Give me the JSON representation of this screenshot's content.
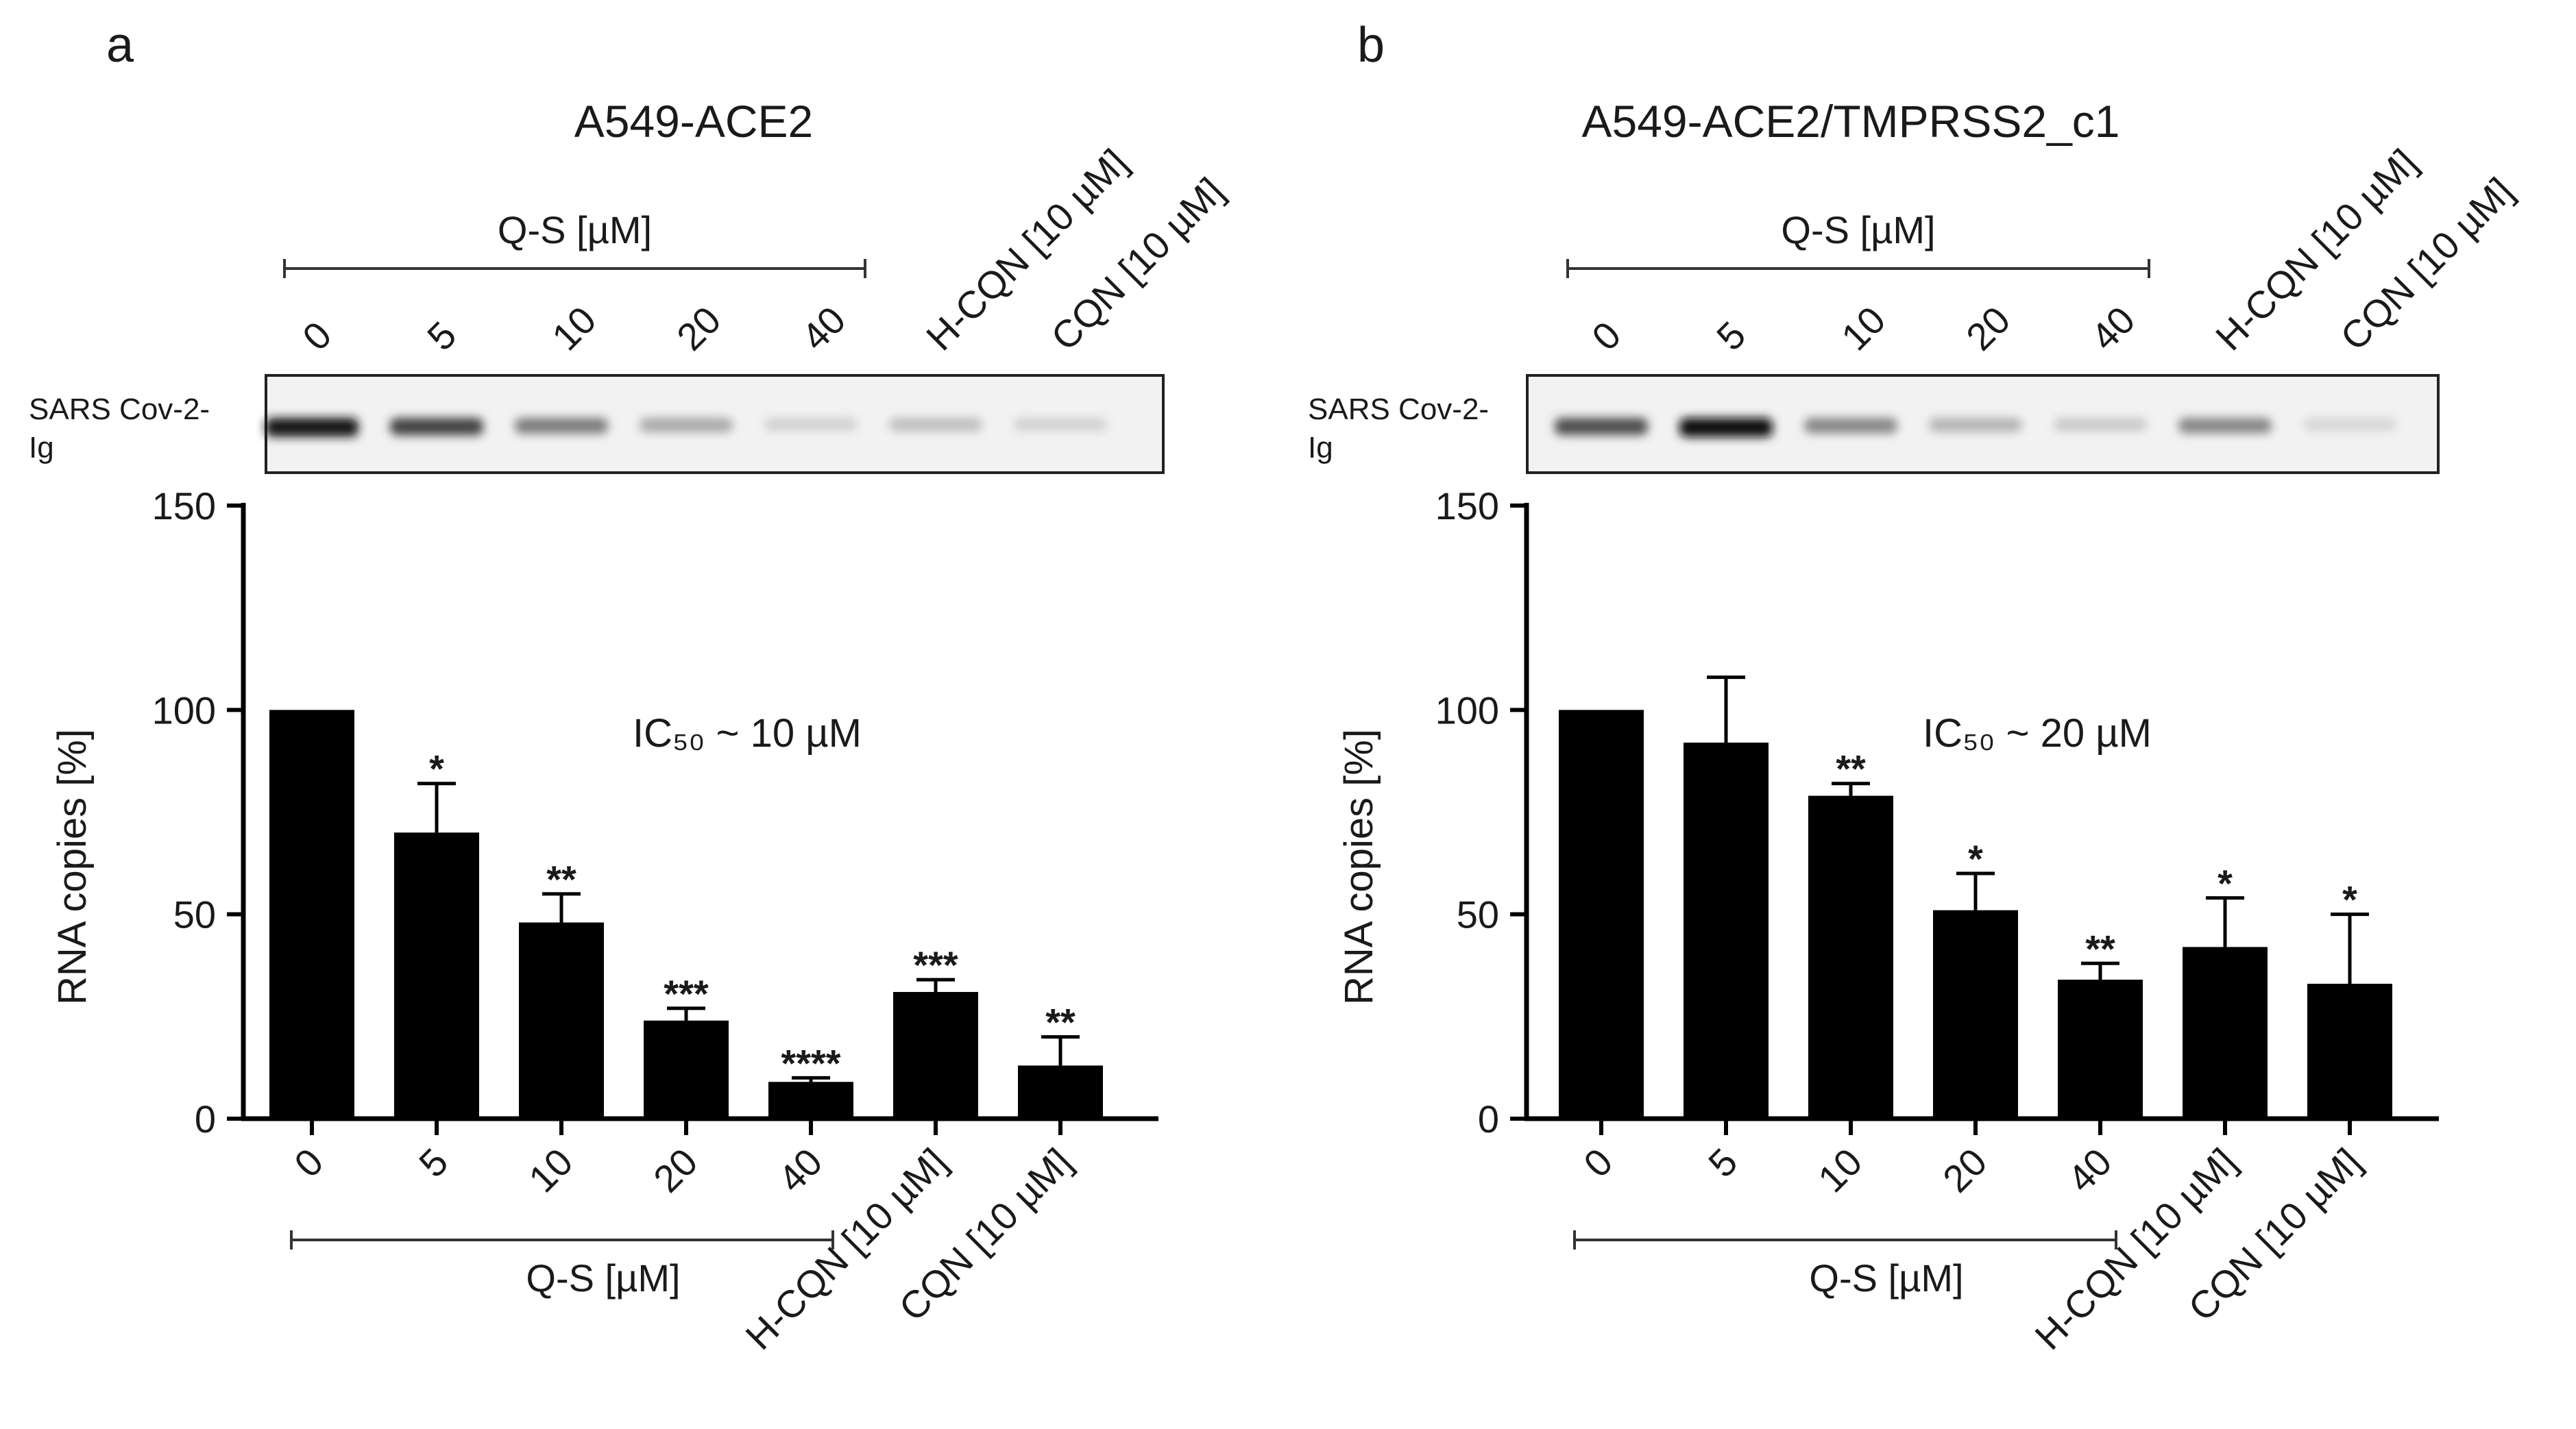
{
  "figure": {
    "panels": [
      {
        "panel_letter": "a",
        "title": "A549-ACE2",
        "blot_group_label": "Q-S [µM]",
        "blot_lane_labels": [
          "0",
          "5",
          "10",
          "20",
          "40",
          "H-CQN [10 µM]",
          "CQN [10 µM]"
        ],
        "blot_row_label": [
          "SARS Cov-2-",
          "Ig"
        ],
        "blot_band_intensity": [
          0.95,
          0.75,
          0.5,
          0.3,
          0.12,
          0.2,
          0.12
        ],
        "annotation": "IC₅₀ ~ 10 µM"
      },
      {
        "panel_letter": "b",
        "title": "A549-ACE2/TMPRSS2_c1",
        "blot_group_label": "Q-S [µM]",
        "blot_lane_labels": [
          "0",
          "5",
          "10",
          "20",
          "40",
          "H-CQN [10 µM]",
          "CQN [10 µM]"
        ],
        "blot_row_label": [
          "SARS Cov-2-",
          "Ig"
        ],
        "blot_band_intensity": [
          0.7,
          1.0,
          0.45,
          0.25,
          0.15,
          0.45,
          0.1
        ],
        "annotation": "IC₅₀ ~ 20 µM"
      }
    ]
  },
  "chart_data": [
    {
      "type": "bar",
      "ylabel": "RNA copies [%]",
      "xlabel": "",
      "x_group_label": "Q-S [µM]",
      "categories": [
        "0",
        "5",
        "10",
        "20",
        "40",
        "H-CQN [10 µM]",
        "CQN [10 µM]"
      ],
      "values": [
        100,
        70,
        48,
        24,
        9,
        31,
        13
      ],
      "errors": [
        0,
        12,
        7,
        3,
        1,
        3,
        7
      ],
      "significance": [
        "",
        "*",
        "**",
        "***",
        "****",
        "***",
        "**"
      ],
      "ylim": [
        0,
        150
      ],
      "yticks": [
        0,
        50,
        100,
        150
      ],
      "grid": false,
      "bar_color": "#000000"
    },
    {
      "type": "bar",
      "ylabel": "RNA copies [%]",
      "xlabel": "",
      "x_group_label": "Q-S [µM]",
      "categories": [
        "0",
        "5",
        "10",
        "20",
        "40",
        "H-CQN [10 µM]",
        "CQN [10 µM]"
      ],
      "values": [
        100,
        92,
        79,
        51,
        34,
        42,
        33
      ],
      "errors": [
        0,
        16,
        3,
        9,
        4,
        12,
        17
      ],
      "significance": [
        "",
        "",
        "**",
        "*",
        "**",
        "*",
        "*"
      ],
      "ylim": [
        0,
        150
      ],
      "yticks": [
        0,
        50,
        100,
        150
      ],
      "grid": false,
      "bar_color": "#000000"
    }
  ]
}
